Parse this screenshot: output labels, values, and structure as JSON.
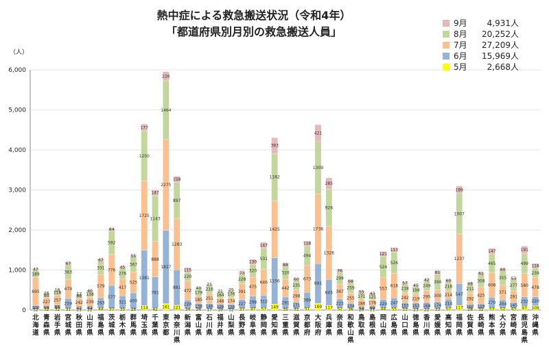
{
  "chart_data": {
    "type": "bar",
    "stacked": true,
    "title": "熱中症による救急搬送状況（令和4年）",
    "subtitle": "「都道府県別月別の救急搬送人員」",
    "ylabel": "（人）",
    "ylim": [
      0,
      6000
    ],
    "yticks": [
      "0",
      "1,000",
      "2,000",
      "3,000",
      "4,000",
      "5,000",
      "6,000"
    ],
    "legend_position": "top-right",
    "categories": [
      "北海道",
      "青森県",
      "岩手県",
      "宮城県",
      "秋田県",
      "山形県",
      "福島県",
      "茨城県",
      "栃木県",
      "群馬県",
      "埼玉県",
      "千葉県",
      "東京都",
      "神奈川県",
      "新潟県",
      "富山県",
      "石川県",
      "福井県",
      "山梨県",
      "長野県",
      "岐阜県",
      "静岡県",
      "愛知県",
      "三重県",
      "滋賀県",
      "京都府",
      "大阪府",
      "兵庫県",
      "奈良県",
      "和歌山県",
      "鳥取県",
      "島根県",
      "岡山県",
      "広島県",
      "山口県",
      "徳島県",
      "香川県",
      "愛媛県",
      "高知県",
      "福岡県",
      "佐賀県",
      "長崎県",
      "熊本県",
      "大分県",
      "宮崎県",
      "鹿児島県",
      "沖縄県"
    ],
    "series": [
      {
        "name": "5月",
        "legend_label": "5月",
        "legend_value": "2,668人",
        "color": "#ffff00",
        "values": [
          12,
          32,
          32,
          31,
          21,
          22,
          44,
          37,
          35,
          28,
          114,
          42,
          161,
          121,
          34,
          26,
          17,
          19,
          12,
          37,
          47,
          57,
          149,
          35,
          31,
          51,
          169,
          117,
          52,
          36,
          20,
          21,
          44,
          55,
          33,
          23,
          22,
          33,
          57,
          117,
          28,
          32,
          53,
          52,
          43,
          97,
          109
        ]
      },
      {
        "name": "6月",
        "legend_value": "15,969人",
        "color": "#95b3d7",
        "values": [
          100,
          58,
          88,
          259,
          42,
          62,
          263,
          577,
          321,
          400,
          1381,
          781,
          1827,
          881,
          220,
          138,
          146,
          126,
          126,
          227,
          298,
          312,
          1156,
          291,
          171,
          389,
          991,
          645,
          223,
          134,
          52,
          69,
          220,
          247,
          153,
          153,
          168,
          174,
          214,
          547,
          107,
          119,
          270,
          204,
          145,
          232,
          220
        ]
      },
      {
        "name": "7月",
        "legend_value": "27,209人",
        "color": "#fac090",
        "values": [
          695,
          227,
          257,
          479,
          242,
          239,
          579,
          776,
          417,
          525,
          1725,
          888,
          2275,
          1283,
          472,
          185,
          251,
          148,
          174,
          391,
          475,
          646,
          1425,
          442,
          298,
          673,
          1738,
          1328,
          367,
          255,
          186,
          178,
          553,
          618,
          242,
          219,
          295,
          300,
          214,
          1237,
          292,
          425,
          608,
          371,
          291,
          580,
          478
        ]
      },
      {
        "name": "8月",
        "legend_value": "20,252人",
        "color": "#c3d69b",
        "values": [
          189,
          90,
          118,
          363,
          88,
          138,
          331,
          592,
          276,
          367,
          1250,
          1143,
          1464,
          897,
          220,
          179,
          216,
          164,
          176,
          228,
          320,
          531,
          1182,
          320,
          235,
          494,
          1309,
          926,
          299,
          259,
          171,
          121,
          524,
          526,
          218,
          199,
          249,
          390,
          218,
          1007,
          211,
          308,
          465,
          355,
          277,
          499,
          239
        ]
      },
      {
        "name": "9月",
        "legend_value": "4,931人",
        "color": "#e6b9b8",
        "values": [
          47,
          26,
          16,
          67,
          17,
          40,
          67,
          64,
          45,
          55,
          177,
          147,
          226,
          158,
          115,
          40,
          21,
          21,
          25,
          73,
          130,
          147,
          393,
          88,
          60,
          118,
          421,
          285,
          76,
          68,
          55,
          43,
          121,
          113,
          57,
          45,
          42,
          81,
          60,
          189,
          48,
          61,
          147,
          60,
          53,
          191,
          118
        ]
      }
    ]
  }
}
